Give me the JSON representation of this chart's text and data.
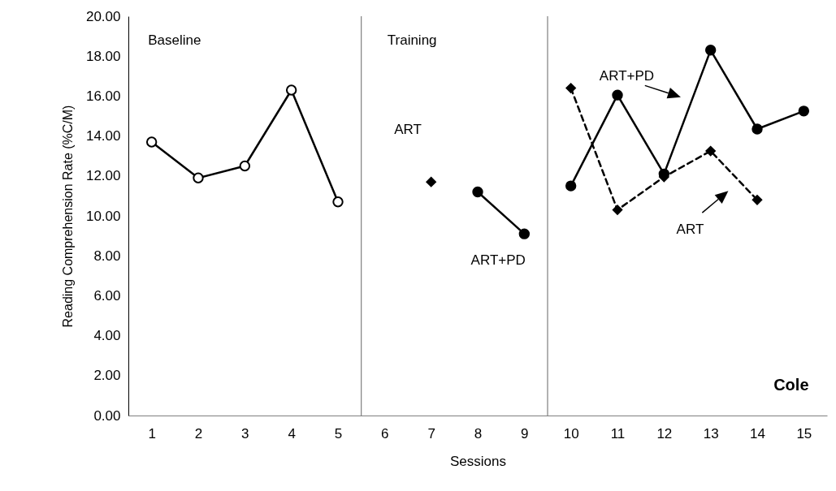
{
  "chart_data": {
    "type": "line",
    "xlabel": "Sessions",
    "ylabel": "Reading Comprehension Rate (%C/M)",
    "xlim": [
      0.5,
      15.5
    ],
    "xticks": [
      1,
      2,
      3,
      4,
      5,
      6,
      7,
      8,
      9,
      10,
      11,
      12,
      13,
      14,
      15
    ],
    "ylim": [
      0,
      20
    ],
    "yticks": [
      {
        "value": 0,
        "label": "0.00"
      },
      {
        "value": 2,
        "label": "2.00"
      },
      {
        "value": 4,
        "label": "4.00"
      },
      {
        "value": 6,
        "label": "6.00"
      },
      {
        "value": 8,
        "label": "8.00"
      },
      {
        "value": 10,
        "label": "10.00"
      },
      {
        "value": 12,
        "label": "12.00"
      },
      {
        "value": 14,
        "label": "14.00"
      },
      {
        "value": 16,
        "label": "16.00"
      },
      {
        "value": 18,
        "label": "18.00"
      },
      {
        "value": 20,
        "label": "20.00"
      }
    ],
    "grid": false,
    "series": [
      {
        "color": "#000000",
        "marker": "circle",
        "line_style": "solid",
        "x": [
          1,
          2,
          3,
          4,
          5
        ],
        "values": [
          13.7,
          11.9,
          12.5,
          16.3,
          10.7
        ]
      },
      {
        "color": "#000000",
        "marker": "diamond",
        "line_style": "solid",
        "x": [
          7
        ],
        "values": [
          11.7
        ]
      },
      {
        "color": "#000000",
        "marker": "circle",
        "line_style": "solid",
        "x": [
          8,
          9
        ],
        "values": [
          11.2,
          9.1
        ]
      },
      {
        "color": "#000000",
        "marker": "circle",
        "line_style": "solid",
        "x": [
          10,
          11,
          12,
          13,
          14,
          15
        ],
        "values": [
          11.5,
          16.05,
          12.1,
          18.3,
          14.35,
          15.25
        ]
      },
      {
        "color": "#000000",
        "marker": "diamond",
        "line_style": "dashed",
        "x": [
          10,
          11,
          12,
          13,
          14
        ],
        "values": [
          16.4,
          10.3,
          11.95,
          13.25,
          10.8
        ]
      }
    ],
    "ref_lines": [
      {
        "axis": "x",
        "value": 5.5
      },
      {
        "axis": "x",
        "value": 9.5
      }
    ],
    "annotations": [
      "Baseline",
      "Training",
      "ART",
      "ART+PD",
      "ART+PD",
      "ART",
      "Cole"
    ]
  }
}
